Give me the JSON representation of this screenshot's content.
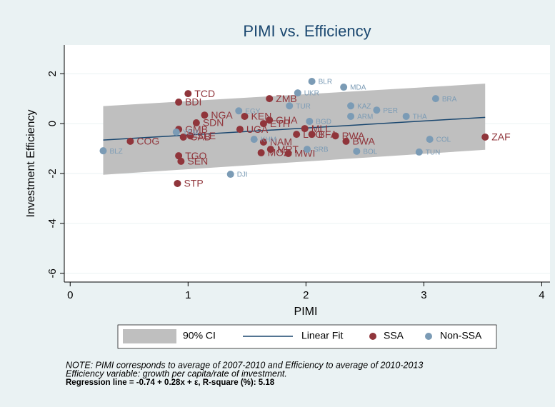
{
  "chart_data": {
    "type": "scatter",
    "title": "PIMI vs. Efficiency",
    "x_label": "PIMI",
    "y_label": "Investment Efficiency",
    "xlim": [
      -0.05,
      4.07
    ],
    "ylim": [
      -6.35,
      3.15
    ],
    "xticks": [
      0,
      1,
      2,
      3,
      4
    ],
    "yticks": [
      -6,
      -4,
      -2,
      0,
      2
    ],
    "grid": true,
    "band": {
      "name": "90% CI",
      "color": "#bfbfbf",
      "x": [
        0.28,
        3.52
      ],
      "upper": [
        0.7,
        1.6
      ],
      "lower": [
        -2.05,
        -1.05
      ]
    },
    "fit": {
      "name": "Linear Fit",
      "color": "#1a476f",
      "x": [
        0.28,
        3.52
      ],
      "values": [
        -0.66,
        0.25
      ]
    },
    "series": [
      {
        "name": "SSA",
        "color": "#90353b",
        "x": [
          1.0,
          0.92,
          1.14,
          1.07,
          0.92,
          0.96,
          1.02,
          0.51,
          0.92,
          0.94,
          0.91,
          1.48,
          1.64,
          1.44,
          1.69,
          1.69,
          1.99,
          1.92,
          2.05,
          2.25,
          2.34,
          1.64,
          1.7,
          1.62,
          1.85,
          3.52
        ],
        "values": [
          1.2,
          0.86,
          0.34,
          0.03,
          -0.23,
          -0.54,
          -0.49,
          -0.71,
          -1.29,
          -1.51,
          -2.4,
          0.29,
          0.0,
          -0.23,
          1.0,
          0.14,
          -0.2,
          -0.43,
          -0.43,
          -0.49,
          -0.71,
          -0.74,
          -1.03,
          -1.17,
          -1.2,
          -0.54
        ],
        "labels": [
          "TCD",
          "BDI",
          "NGA",
          "SDN",
          "GMB",
          "GAB",
          "SLE",
          "COG",
          "TGO",
          "SEN",
          "STP",
          "KEN",
          "ETH",
          "UGA",
          "ZMB",
          "GHA",
          "MLI",
          "LSO",
          "BFA",
          "RWA",
          "BWA",
          "NAM",
          "MRT",
          "MOZ",
          "MWI",
          "ZAF"
        ]
      },
      {
        "name": "Non-SSA",
        "color": "#7b9bb5",
        "x": [
          2.05,
          2.32,
          1.93,
          1.86,
          2.38,
          2.6,
          3.1,
          1.43,
          2.38,
          2.85,
          2.03,
          0.9,
          0.28,
          1.56,
          2.01,
          2.43,
          2.96,
          3.05,
          1.36
        ],
        "values": [
          1.69,
          1.46,
          1.23,
          0.71,
          0.71,
          0.54,
          1.0,
          0.51,
          0.29,
          0.29,
          0.09,
          -0.34,
          -1.09,
          -0.63,
          -1.03,
          -1.11,
          -1.14,
          -0.63,
          -2.03
        ],
        "labels": [
          "BLR",
          "MDA",
          "UKR",
          "TUR",
          "KAZ",
          "PER",
          "BRA",
          "EGY",
          "ARM",
          "THA",
          "BGD",
          "YEM",
          "BLZ",
          "KHM",
          "SRB",
          "BOL",
          "TUN",
          "COL",
          "DJI"
        ]
      }
    ],
    "notes": [
      "NOTE: PIMI corresponds to average of 2007-2010 and Efficiency to average of 2010-2013",
      "Efficiency variable: growth per capita/rate of investment.",
      "Regression line  = -0.74 +  0.28x + ε,   R-square (%):  5.18"
    ]
  }
}
